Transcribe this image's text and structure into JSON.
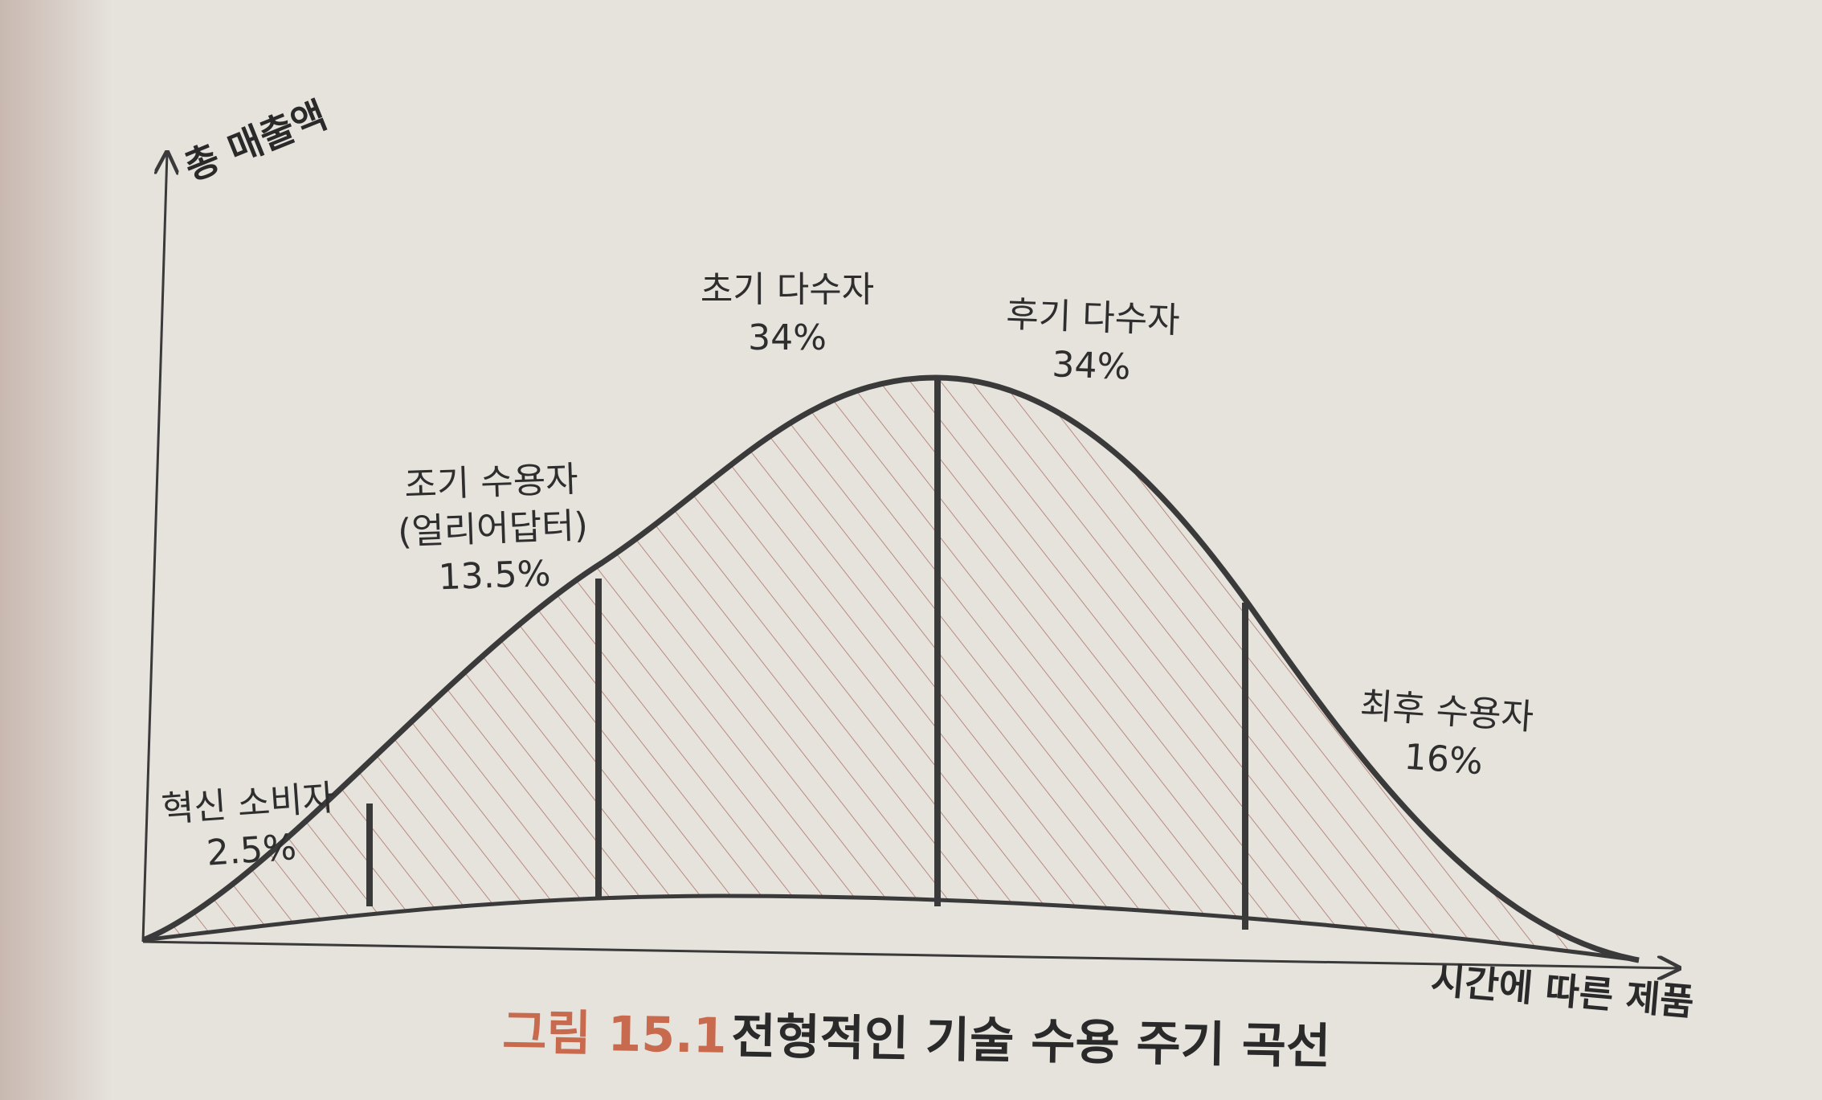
{
  "axes": {
    "y_label": "총 매출액",
    "x_label": "시간에 따른 제품"
  },
  "segments": [
    {
      "name": "혁신 소비자",
      "percent": "2.5%"
    },
    {
      "name": "조기 수용자",
      "sub": "(얼리어답터)",
      "percent": "13.5%"
    },
    {
      "name": "초기 다수자",
      "percent": "34%"
    },
    {
      "name": "후기 다수자",
      "percent": "34%"
    },
    {
      "name": "최후 수용자",
      "percent": "16%"
    }
  ],
  "caption": {
    "number": "그림 15.1",
    "title": "전형적인 기술 수용 주기 곡선"
  },
  "colors": {
    "curve": "#3a3a3a",
    "hatch": "#b88a80",
    "accent": "#c86a4e"
  }
}
